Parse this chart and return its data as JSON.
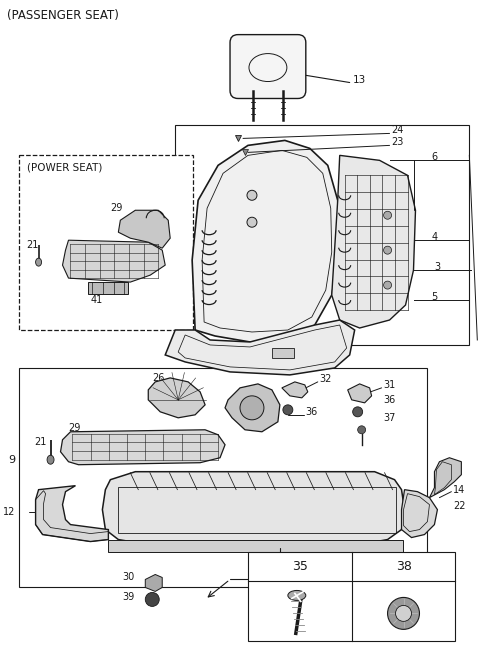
{
  "title": "(PASSENGER SEAT)",
  "bg": "#ffffff",
  "lc": "#1a1a1a",
  "figsize": [
    4.8,
    6.56
  ],
  "dpi": 100
}
